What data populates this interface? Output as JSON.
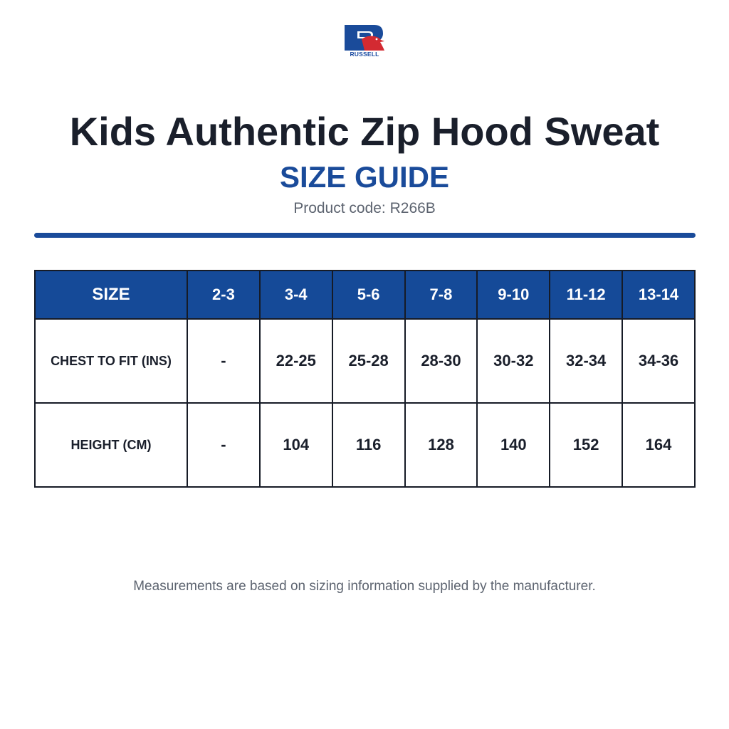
{
  "brand": {
    "name": "RUSSELL",
    "colors": {
      "blue": "#1a4b9a",
      "red": "#d32a32"
    }
  },
  "header": {
    "title": "Kids Authentic Zip Hood Sweat",
    "subtitle": "SIZE GUIDE",
    "product_code": "Product code: R266B"
  },
  "table": {
    "header_label": "SIZE",
    "sizes": [
      "2-3",
      "3-4",
      "5-6",
      "7-8",
      "9-10",
      "11-12",
      "13-14"
    ],
    "rows": [
      {
        "label": "CHEST TO FIT (INS)",
        "values": [
          "-",
          "22-25",
          "25-28",
          "28-30",
          "30-32",
          "32-34",
          "34-36"
        ]
      },
      {
        "label": "HEIGHT (CM)",
        "values": [
          "-",
          "104",
          "116",
          "128",
          "140",
          "152",
          "164"
        ]
      }
    ]
  },
  "footer": {
    "note": "Measurements are based on sizing information supplied by the manufacturer."
  }
}
